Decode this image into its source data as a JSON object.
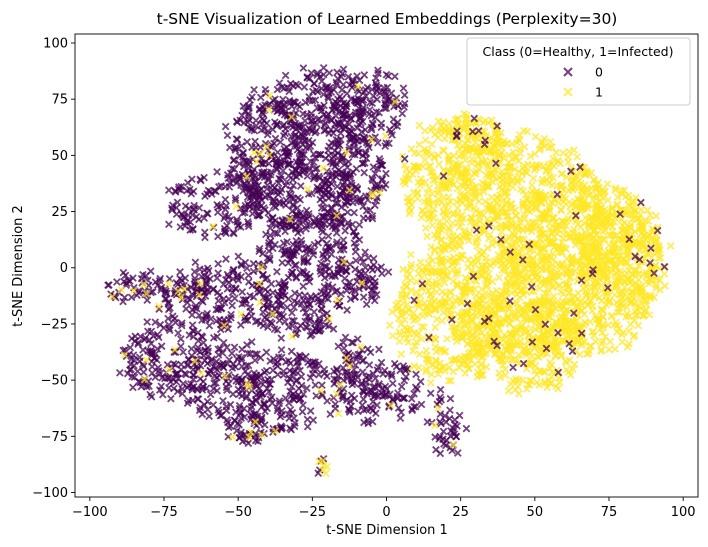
{
  "chart_data": {
    "type": "scatter",
    "title": "t-SNE Visualization of Learned Embeddings (Perplexity=30)",
    "xlabel": "t-SNE Dimension 1",
    "ylabel": "t-SNE Dimension 2",
    "xlim": [
      -105,
      105
    ],
    "ylim": [
      -102,
      104
    ],
    "x_ticks": [
      -100,
      -75,
      -50,
      -25,
      0,
      25,
      50,
      75,
      100
    ],
    "y_ticks": [
      -100,
      -75,
      -50,
      -25,
      0,
      25,
      50,
      75,
      100
    ],
    "x_tick_labels": [
      "−100",
      "−75",
      "−50",
      "−25",
      "0",
      "25",
      "50",
      "75",
      "100"
    ],
    "y_tick_labels": [
      "−100",
      "−75",
      "−50",
      "−25",
      "0",
      "25",
      "50",
      "75",
      "100"
    ],
    "grid": false,
    "marker": "x",
    "legend": {
      "title": "Class (0=Healthy, 1=Infected)",
      "placement": "top-right",
      "entries": [
        {
          "label": "0",
          "color": "#440154"
        },
        {
          "label": "1",
          "color": "#fde725"
        }
      ]
    },
    "series": [
      {
        "name": "0",
        "color": "#440154",
        "regions": [
          {
            "cx": -22,
            "cy": 70,
            "rx": 16,
            "ry": 20
          },
          {
            "cx": -5,
            "cy": 70,
            "rx": 12,
            "ry": 18
          },
          {
            "cx": -40,
            "cy": 55,
            "rx": 14,
            "ry": 25
          },
          {
            "cx": -30,
            "cy": 35,
            "rx": 20,
            "ry": 18
          },
          {
            "cx": -12,
            "cy": 40,
            "rx": 12,
            "ry": 22
          },
          {
            "cx": -58,
            "cy": 28,
            "rx": 16,
            "ry": 14
          },
          {
            "cx": -25,
            "cy": 10,
            "rx": 18,
            "ry": 15
          },
          {
            "cx": -10,
            "cy": -5,
            "rx": 10,
            "ry": 14
          },
          {
            "cx": -78,
            "cy": -10,
            "rx": 18,
            "ry": 8
          },
          {
            "cx": -52,
            "cy": -12,
            "rx": 18,
            "ry": 16
          },
          {
            "cx": -30,
            "cy": -18,
            "rx": 14,
            "ry": 14
          },
          {
            "cx": -75,
            "cy": -40,
            "rx": 14,
            "ry": 18
          },
          {
            "cx": -55,
            "cy": -50,
            "rx": 14,
            "ry": 20
          },
          {
            "cx": -35,
            "cy": -55,
            "rx": 15,
            "ry": 18
          },
          {
            "cx": -10,
            "cy": -50,
            "rx": 10,
            "ry": 20
          },
          {
            "cx": 5,
            "cy": -55,
            "rx": 8,
            "ry": 12
          },
          {
            "cx": -45,
            "cy": -72,
            "rx": 10,
            "ry": 6
          },
          {
            "cx": 20,
            "cy": -70,
            "rx": 5,
            "ry": 15
          },
          {
            "cx": -22,
            "cy": -89,
            "rx": 2,
            "ry": 4
          }
        ]
      },
      {
        "name": "1",
        "color": "#fde725",
        "regions": [
          {
            "cx": 45,
            "cy": 10,
            "rx": 32,
            "ry": 50
          },
          {
            "cx": 65,
            "cy": 0,
            "rx": 28,
            "ry": 40
          },
          {
            "cx": 25,
            "cy": 40,
            "rx": 20,
            "ry": 28
          },
          {
            "cx": 20,
            "cy": -20,
            "rx": 18,
            "ry": 30
          },
          {
            "cx": 45,
            "cy": -35,
            "rx": 22,
            "ry": 20
          },
          {
            "cx": 80,
            "cy": 5,
            "rx": 14,
            "ry": 28
          },
          {
            "cx": 30,
            "cy": 60,
            "rx": 8,
            "ry": 8
          }
        ]
      }
    ]
  }
}
